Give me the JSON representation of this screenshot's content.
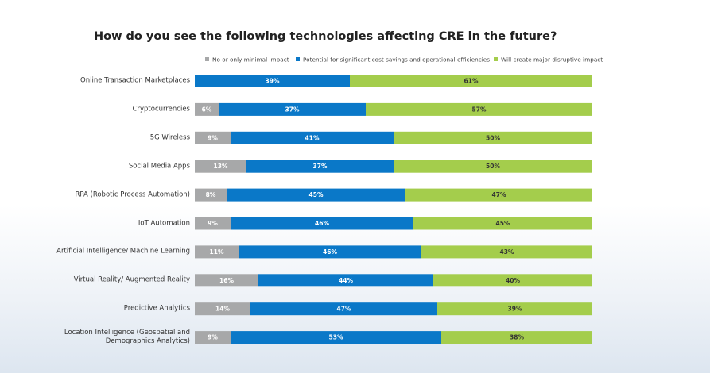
{
  "chart_data": {
    "type": "stacked-bar-horizontal",
    "title": "How do you see the following technologies affecting CRE in the future?",
    "categories": [
      "Online Transaction Marketplaces",
      "Cryptocurrencies",
      "5G Wireless",
      "Social Media Apps",
      "RPA (Robotic Process Automation)",
      "IoT Automation",
      "Artificial Intelligence/ Machine Learning",
      "Virtual Reality/ Augmented Reality",
      "Predictive Analytics",
      "Location Intelligence (Geospatial and Demographics Analytics)"
    ],
    "xlim": [
      0,
      100
    ],
    "series": [
      {
        "name": "No or only minimal impact",
        "color": "#a7a8a9",
        "values": [
          null,
          6,
          9,
          13,
          8,
          9,
          11,
          16,
          14,
          9
        ],
        "value_labels": [
          null,
          "6%",
          "9%",
          "13%",
          "8%",
          "9%",
          "11%",
          "16%",
          "14%",
          "9%"
        ]
      },
      {
        "name": "Potential for significant cost savings and operational efficiencies",
        "color": "#0a78c8",
        "values": [
          39,
          37,
          41,
          37,
          45,
          46,
          46,
          44,
          47,
          53
        ],
        "value_labels": [
          "39%",
          "37%",
          "41%",
          "37%",
          "45%",
          "46%",
          "46%",
          "44%",
          "47%",
          "53%"
        ]
      },
      {
        "name": "Will create major disruptive impact",
        "color": "#a4cd4c",
        "values": [
          61,
          57,
          50,
          50,
          47,
          45,
          43,
          40,
          39,
          38
        ],
        "value_labels": [
          "61%",
          "57%",
          "50%",
          "50%",
          "47%",
          "45%",
          "43%",
          "40%",
          "39%",
          "38%"
        ]
      }
    ]
  }
}
